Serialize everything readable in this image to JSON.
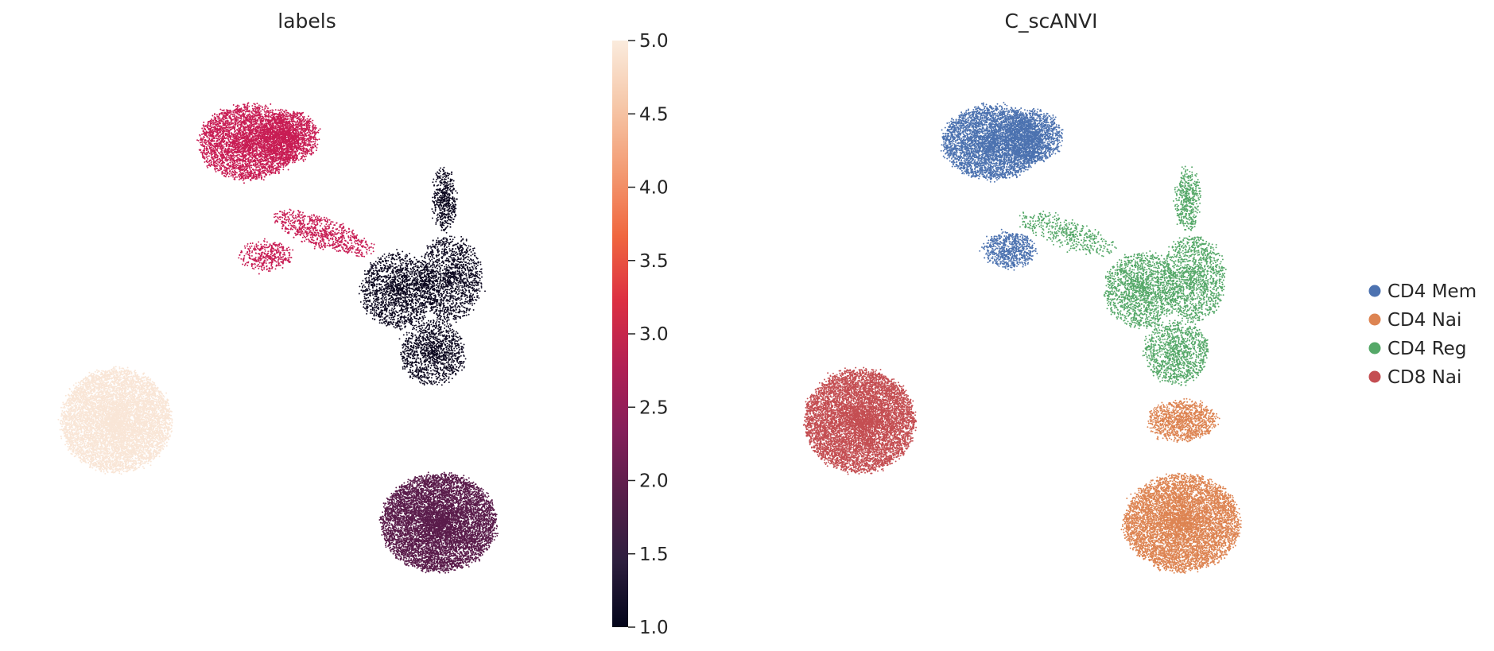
{
  "chart_data": [
    {
      "type": "scatter",
      "title": "labels",
      "xlabel": "",
      "ylabel": "",
      "grid": false,
      "colorbar": {
        "range": [
          1.0,
          5.0
        ],
        "ticks": [
          {
            "value": 1.0,
            "label": "1.0"
          },
          {
            "value": 1.5,
            "label": "1.5"
          },
          {
            "value": 2.0,
            "label": "2.0"
          },
          {
            "value": 2.5,
            "label": "2.5"
          },
          {
            "value": 3.0,
            "label": "3.0"
          },
          {
            "value": 3.5,
            "label": "3.5"
          },
          {
            "value": 4.0,
            "label": "4.0"
          },
          {
            "value": 4.5,
            "label": "4.5"
          },
          {
            "value": 5.0,
            "label": "5.0"
          }
        ],
        "colormap": [
          "#03051a",
          "#2d1e3e",
          "#561e49",
          "#841e5a",
          "#b11f54",
          "#dc2f42",
          "#f0673f",
          "#f39b73",
          "#f6c7a8",
          "#faebdd"
        ]
      },
      "clusters": [
        {
          "value": 3.0,
          "color": "#c81d54",
          "density": 0.72,
          "blobs": [
            [
              -2.3,
              5.2,
              0.85,
              0.65,
              0.6
            ],
            [
              -1.6,
              5.3,
              0.5,
              0.45,
              0.22
            ],
            [
              -1.0,
              3.6,
              0.9,
              0.25,
              0.12,
              -0.35
            ],
            [
              -2.0,
              3.2,
              0.45,
              0.25,
              0.06
            ]
          ]
        },
        {
          "value": 1.0,
          "color": "#0e0a21",
          "density": 0.55,
          "blobs": [
            [
              0.3,
              2.6,
              0.65,
              0.65,
              0.35
            ],
            [
              1.2,
              2.8,
              0.55,
              0.75,
              0.3
            ],
            [
              0.9,
              1.5,
              0.55,
              0.55,
              0.25
            ],
            [
              1.1,
              4.2,
              0.2,
              0.55,
              0.1
            ]
          ]
        },
        {
          "value": 2.1,
          "color": "#5a1c4b",
          "density": 0.85,
          "blobs": [
            [
              1.0,
              -1.5,
              1.0,
              0.85,
              1.0
            ]
          ]
        },
        {
          "value": 5.0,
          "color": "#f9e6d7",
          "density": 0.85,
          "blobs": [
            [
              -4.6,
              0.3,
              0.95,
              0.9,
              1.0
            ]
          ]
        }
      ]
    },
    {
      "type": "scatter",
      "title": "C_scANVI",
      "xlabel": "",
      "ylabel": "",
      "grid": false,
      "legend_position": "right",
      "series": [
        {
          "name": "CD4 Mem",
          "color": "#4c72b0",
          "density": 0.72,
          "blobs": [
            [
              -2.3,
              5.2,
              0.85,
              0.65,
              0.6
            ],
            [
              -1.6,
              5.3,
              0.5,
              0.45,
              0.22
            ],
            [
              -2.0,
              3.3,
              0.45,
              0.3,
              0.1
            ]
          ]
        },
        {
          "name": "CD4 Nai",
          "color": "#dd8452",
          "density": 0.85,
          "blobs": [
            [
              1.0,
              -1.5,
              1.0,
              0.85,
              1.0
            ],
            [
              1.0,
              0.3,
              0.6,
              0.35,
              0.18
            ]
          ]
        },
        {
          "name": "CD4 Reg",
          "color": "#55a868",
          "density": 0.55,
          "blobs": [
            [
              0.3,
              2.6,
              0.65,
              0.65,
              0.35
            ],
            [
              1.2,
              2.8,
              0.55,
              0.75,
              0.3
            ],
            [
              0.9,
              1.5,
              0.55,
              0.55,
              0.25
            ],
            [
              1.1,
              4.2,
              0.2,
              0.55,
              0.1
            ],
            [
              -1.0,
              3.6,
              0.9,
              0.25,
              0.1,
              -0.35
            ]
          ]
        },
        {
          "name": "CD8 Nai",
          "color": "#c44e52",
          "density": 0.85,
          "blobs": [
            [
              -4.6,
              0.3,
              0.95,
              0.9,
              1.0
            ]
          ]
        }
      ]
    }
  ]
}
